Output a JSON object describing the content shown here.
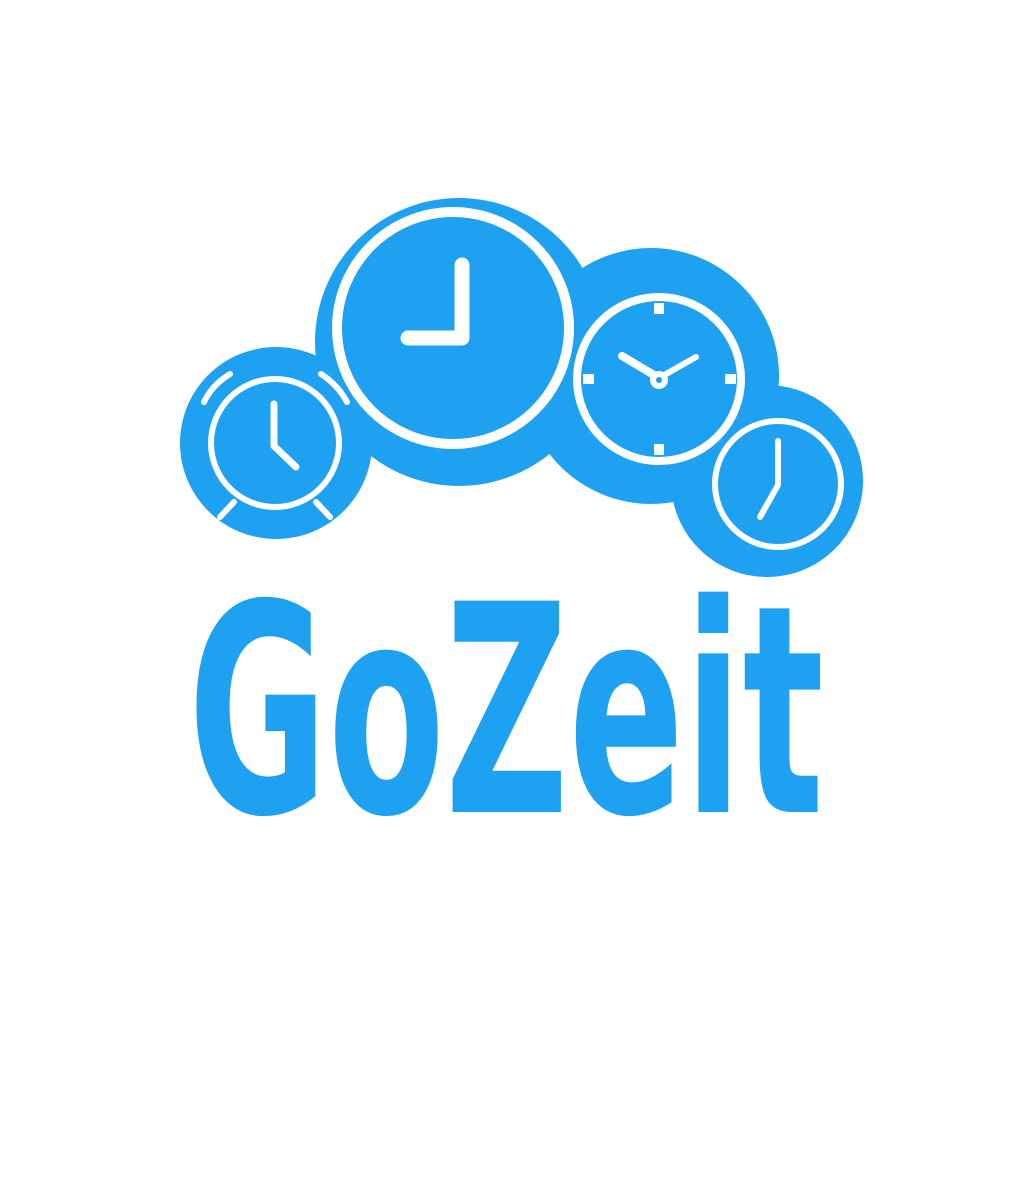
{
  "logo": {
    "wordmark": "GoZeit",
    "accent_color": "#1fa1f2",
    "background_color": "#ffffff",
    "icons": [
      "alarm-clock-icon",
      "wall-clock-icon",
      "stopwatch-icon",
      "small-clock-icon"
    ]
  }
}
